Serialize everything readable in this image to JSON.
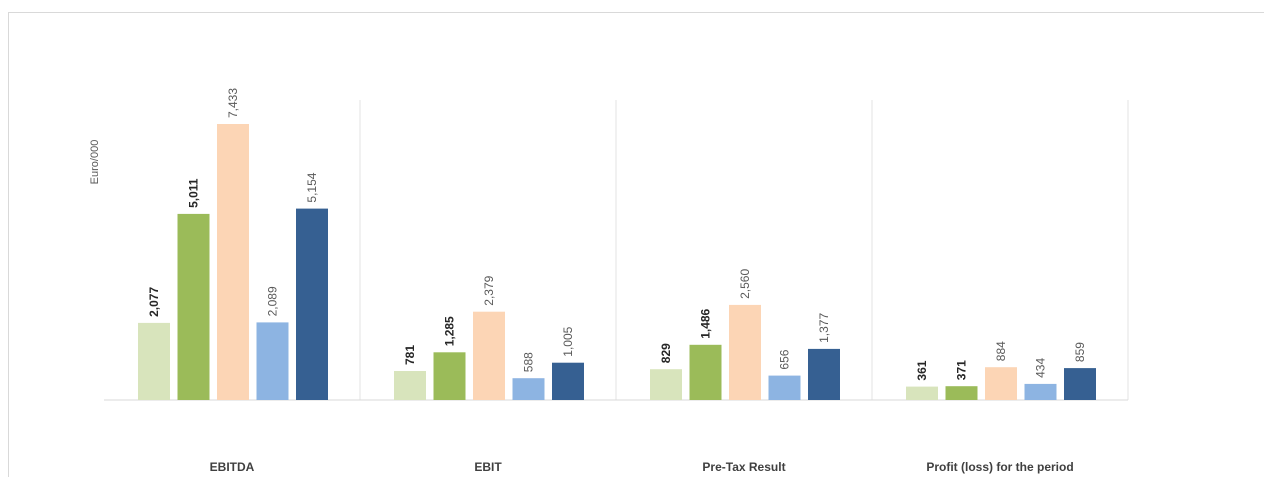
{
  "chart_data": {
    "type": "bar",
    "ylabel": "Euro/000",
    "categories": [
      "EBITDA",
      "EBIT",
      "Pre-Tax Result",
      "Profit (loss) for the period"
    ],
    "series": [
      {
        "color": "#d8e4bc",
        "label_color": "#262626",
        "label_bold": true,
        "values": [
          2077,
          781,
          829,
          361
        ]
      },
      {
        "color": "#9bbb59",
        "label_color": "#262626",
        "label_bold": true,
        "values": [
          5011,
          1285,
          1486,
          371
        ]
      },
      {
        "color": "#fcd5b5",
        "label_color": "#595959",
        "label_bold": false,
        "values": [
          7433,
          2379,
          2560,
          884
        ]
      },
      {
        "color": "#8db4e2",
        "label_color": "#595959",
        "label_bold": false,
        "values": [
          2089,
          588,
          656,
          434
        ]
      },
      {
        "color": "#366092",
        "label_color": "#595959",
        "label_bold": false,
        "values": [
          5154,
          1005,
          1377,
          859
        ]
      }
    ],
    "data_labels": [
      [
        "2,077",
        "781",
        "829",
        "361"
      ],
      [
        "5,011",
        "1,285",
        "1,486",
        "371"
      ],
      [
        "7,433",
        "2,379",
        "2,560",
        "884"
      ],
      [
        "2,089",
        "588",
        "656",
        "434"
      ],
      [
        "5,154",
        "1,005",
        "1,377",
        "859"
      ]
    ],
    "ylim": [
      0,
      8000
    ],
    "grid": false,
    "legend": "none"
  }
}
